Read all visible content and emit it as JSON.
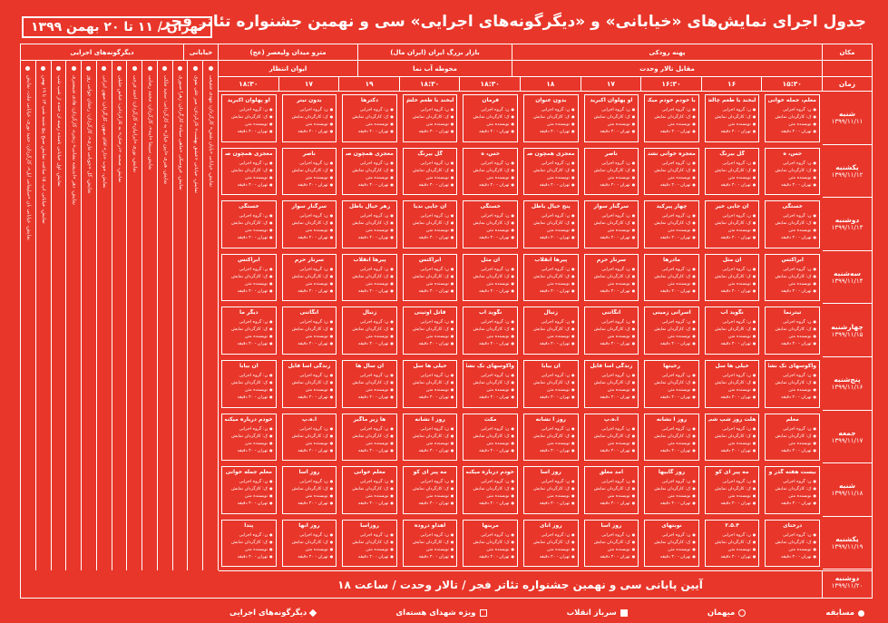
{
  "header": {
    "title": "جدول اجرای نمایش‌های «خیابانی» و «دیگرگونه‌های اجرایی» سی و نهمین جشنواره تئاتر فجر",
    "date_range": "تهران / ۱۱ تا ۲۰ بهمن ۱۳۹۹"
  },
  "columns": {
    "other_label": "دیگرگونه‌های اجرایی",
    "khiabani_label": "خیابانی",
    "place_label": "مکان",
    "time_label": "زمان",
    "venues": [
      {
        "label": "پهنه رودکی"
      },
      {
        "label": "بازار بزرگ ایران (ایران مال)"
      },
      {
        "label": "مترو میدان ولیعصر (عج)"
      }
    ],
    "subvenues": [
      {
        "label": "مقابل تالار وحدت"
      },
      {
        "label": "محوطه آب نما"
      },
      {
        "label": "ایوان انتظار"
      }
    ],
    "times": [
      "۱۵:۳۰",
      "۱۶",
      "۱۶:۳۰",
      "۱۷",
      "۱۸",
      "۱۸:۳۰",
      "۱۸:۳۰",
      "۱۹",
      "۱۷",
      "۱۸:۳۰"
    ]
  },
  "days": [
    {
      "name": "شنبه",
      "date": "۱۳۹۹/۱۱/۱۱"
    },
    {
      "name": "یکشنبه",
      "date": "۱۳۹۹/۱۱/۱۲"
    },
    {
      "name": "دوشنبه",
      "date": "۱۳۹۹/۱۱/۱۳"
    },
    {
      "name": "سه‌شنبه",
      "date": "۱۳۹۹/۱۱/۱۴"
    },
    {
      "name": "چهارشنبه",
      "date": "۱۳۹۹/۱۱/۱۵"
    },
    {
      "name": "پنج‌شنبه",
      "date": "۱۳۹۹/۱۱/۱۶"
    },
    {
      "name": "جمعه",
      "date": "۱۳۹۹/۱۱/۱۷"
    },
    {
      "name": "شنبه",
      "date": "۱۳۹۹/۱۱/۱۸"
    },
    {
      "name": "یکشنبه",
      "date": "۱۳۹۹/۱۱/۱۹"
    }
  ],
  "closing": {
    "text": "آیین پایانی سی و نهمین جشنواره تئاتر فجر / تالار وحدت / ساعت ۱۸",
    "day_name": "دوشنبه",
    "day_date": "۱۳۹۹/۱۱/۲۰"
  },
  "legend": [
    {
      "label": "مسابقه",
      "symbol": "dot"
    },
    {
      "label": "میهمان",
      "symbol": "ring"
    },
    {
      "label": "سرباز انقلاب",
      "symbol": "fill-sq"
    },
    {
      "label": "ویژه شهدای هسته‌ای",
      "symbol": "sq"
    },
    {
      "label": "دیگرگونه‌های اجرایی",
      "symbol": "diamond"
    }
  ],
  "cells": [
    [
      "معلم، جمله خوانی شترشتر",
      "لبخند با طعم چالش",
      "با خودم خودم میکنم",
      "او پهلوان اکبرید",
      "بدون عنوان",
      "فرمان",
      "لبخند با طعم خلش",
      "دکترها",
      "بدون تیتر",
      "او پهلوان اکبرید"
    ],
    [
      "حس، ه",
      "گل بیرنگ",
      "معجزه خوانی نشتر شتر",
      "ناصر",
      "معجزی همچون صورت میدان",
      "حس، ه",
      "گل بیرنگ",
      "معجزی همچون صورت میدان بیست",
      "ناصر",
      "معجزی همچون صورت میدان بیست"
    ],
    [
      "خستگی",
      "ان جایی خیر",
      "چهار پیرکید",
      "سرگنار سوار",
      "پنج خیال باطل",
      "خستگی",
      "ان جایی ندیا",
      "زهر خیال باطل",
      "سرگنار سوار",
      "خستگی"
    ],
    [
      "ابراکتس",
      "آن مثل",
      "مادرها",
      "سرنار حرم",
      "پیرها انقلاب",
      "ان مثل",
      "ابراکتس",
      "پیرها انقلاب",
      "سرنار حرم",
      "ابراکتس"
    ],
    [
      "تیترنما",
      "نگوید آب",
      "اسرانی زمینی",
      "انگاتنی",
      "زنبال",
      "نگوید آب",
      "قاتل اوتینی",
      "زنبال",
      "انگاتنی",
      "دیگر ما"
    ],
    [
      "واکوسهای نک نشانه چنین",
      "خیلی ها سل",
      "رخیتها",
      "زندگی آسا فایل",
      "آن بیابا",
      "واکوسهای نک نشانه چنین",
      "خیلی ها سل",
      "آن سال ها",
      "زندگی آسا فایل",
      "آن بیابا"
    ],
    [
      "معلم",
      "هلت روز شپ شپ",
      "روز آ نشانه",
      "آ.ه.پ",
      "روز آ نشانه",
      "مکث",
      "روز آ نشانه",
      "ها زیر ماگیر",
      "آ.ه.پ",
      "خودم درباره میکنم"
    ],
    [
      "بیست هفته گذر و",
      "مه پیر ای کو",
      "روز گاییها",
      "آمد معلق",
      "روز آسا",
      "خودم درباره میکنم",
      "مه پیر ای کو",
      "معلم خوانی",
      "روز آسا",
      "معلم جمله خوانی"
    ],
    [
      "درختای",
      "۲.۵.۴",
      "نوبتهای",
      "روز آسا",
      "روز آنای",
      "مرینها",
      "اهداو دروده",
      "روزآسا",
      "روز آنها",
      "پندآ"
    ]
  ],
  "other_columns": [
    "نمایش، خیابانی نان «سلیمانی ایل»، کارگردان: حمید نوری، خیابانی ملت، نمایش",
    "نمایش، خیابانی اپ، ۱۵ ساعت نمایش صبح پنج شنبه شپ ۱۳ تا ۱۹ بهمن",
    "نمایش، اول خیابانی نامنده زمینه آن خنده از شپ شپ",
    "نمایش، دهر «اندیشه نشانی» زنجره، کارگردان: هادی شبستری",
    "نمایش، گل «جوبانی ماری»، کارگردان: رحمان جوانی روز",
    "نمایش، خوب «دار» آقای میهن، کارگردان: میهن ایرانی",
    "نمایش، صحنه «درختان» به کارگردانی: عباس خلیلی",
    "نمایش، نوری «ایرانیان» کارگردان: احمد فرجی",
    "نمایش، سینما «آینه»، کارگردان: محمد رضایی",
    "نمایش، هنری «آیین خیال» به کارگردانی: سعید ملکی",
    "نمایش، عروسکی «ماهی سیاه» کارگردان: زهرا صبوری"
  ],
  "khiabani_columns": [
    "نمایش، خیابانی «عشق بهشت» کارگردان: میر علی نقوی",
    "نمایش، خیابانی «پایان نقش» کارگردان: مهدی شفیعی"
  ],
  "cell_lines": [
    "ن: گروه اجرایی",
    "ک: کارگردان نمایش",
    "نویسنده متن",
    "تهران - ۴۰ دقیقه"
  ]
}
